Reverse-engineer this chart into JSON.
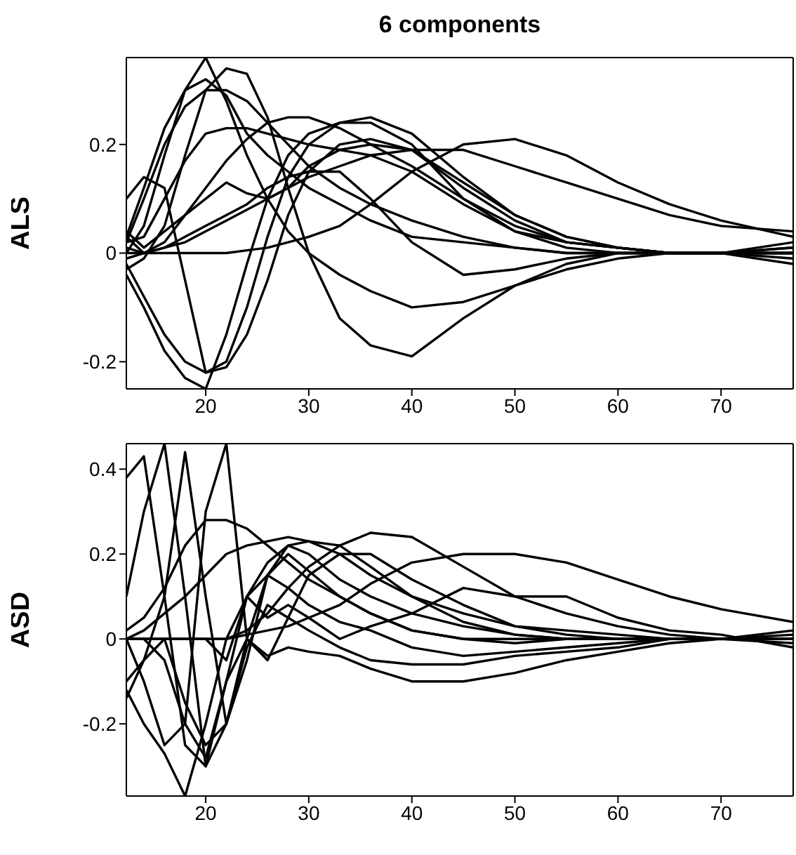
{
  "chart_data": [
    {
      "type": "line",
      "title": "6 components",
      "ylabel": "ALS",
      "xlim": [
        12.3,
        77
      ],
      "xticks": [
        20,
        30,
        40,
        50,
        60,
        70
      ],
      "ylim": [
        -0.25,
        0.36
      ],
      "yticks": [
        -0.2,
        0,
        0.2
      ],
      "x": [
        12.3,
        14,
        16,
        18,
        20,
        22,
        24,
        26,
        28,
        30,
        33,
        36,
        40,
        45,
        50,
        55,
        60,
        65,
        70,
        77
      ],
      "series": [
        {
          "color": "#000000",
          "values": [
            0,
            0.05,
            0.18,
            0.3,
            0.36,
            0.28,
            0.18,
            0.1,
            0.04,
            0,
            -0.04,
            -0.07,
            -0.1,
            -0.09,
            -0.06,
            -0.03,
            -0.01,
            0,
            0,
            0
          ]
        },
        {
          "color": "#000000",
          "values": [
            -0.03,
            -0.01,
            0.05,
            0.18,
            0.3,
            0.34,
            0.33,
            0.25,
            0.12,
            0,
            -0.12,
            -0.17,
            -0.19,
            -0.12,
            -0.06,
            -0.02,
            0,
            0,
            0,
            0
          ]
        },
        {
          "color": "#000000",
          "values": [
            -0.04,
            -0.1,
            -0.18,
            -0.23,
            -0.25,
            -0.15,
            -0.02,
            0.1,
            0.18,
            0.22,
            0.24,
            0.25,
            0.22,
            0.14,
            0.07,
            0.03,
            0.01,
            0,
            0,
            0.01
          ]
        },
        {
          "color": "#000000",
          "values": [
            -0.02,
            -0.08,
            -0.15,
            -0.2,
            -0.22,
            -0.21,
            -0.15,
            -0.05,
            0.07,
            0.15,
            0.2,
            0.21,
            0.19,
            0.12,
            0.06,
            0.02,
            0.01,
            0,
            0,
            0
          ]
        },
        {
          "color": "#000000",
          "values": [
            0,
            0,
            0,
            0,
            0,
            0,
            0.005,
            0.01,
            0.02,
            0.03,
            0.05,
            0.09,
            0.15,
            0.2,
            0.21,
            0.18,
            0.13,
            0.09,
            0.06,
            0.03
          ]
        },
        {
          "color": "#000000",
          "values": [
            0.01,
            0,
            0.02,
            0.07,
            0.12,
            0.17,
            0.21,
            0.24,
            0.25,
            0.25,
            0.23,
            0.2,
            0.16,
            0.1,
            0.05,
            0.02,
            0.01,
            0,
            0,
            0.01
          ]
        },
        {
          "color": "#000000",
          "values": [
            0.02,
            0.1,
            0.2,
            0.27,
            0.3,
            0.3,
            0.28,
            0.24,
            0.2,
            0.16,
            0.12,
            0.09,
            0.06,
            0.03,
            0.01,
            0,
            0,
            0,
            0,
            0
          ]
        },
        {
          "color": "#000000",
          "values": [
            0.03,
            0.12,
            0.23,
            0.3,
            0.32,
            0.29,
            0.22,
            0.18,
            0.15,
            0.12,
            0.09,
            0.06,
            0.03,
            0.02,
            0.01,
            0,
            0,
            0,
            0,
            0
          ]
        },
        {
          "color": "#000000",
          "values": [
            -0.01,
            0,
            0.01,
            0.02,
            0.04,
            0.06,
            0.08,
            0.1,
            0.12,
            0.14,
            0.16,
            0.18,
            0.19,
            0.19,
            0.16,
            0.13,
            0.1,
            0.07,
            0.05,
            0.04
          ]
        },
        {
          "color": "#000000",
          "values": [
            0.1,
            0.14,
            0.12,
            -0.05,
            -0.22,
            -0.2,
            -0.1,
            0.03,
            0.14,
            0.2,
            0.24,
            0.24,
            0.2,
            0.1,
            0.04,
            0.01,
            0,
            0,
            0,
            0
          ]
        },
        {
          "color": "#000000",
          "values": [
            0.02,
            0.03,
            0.1,
            0.17,
            0.22,
            0.23,
            0.23,
            0.22,
            0.21,
            0.2,
            0.19,
            0.18,
            0.15,
            0.09,
            0.04,
            0.02,
            0.01,
            0,
            0,
            0.02
          ]
        },
        {
          "color": "#000000",
          "values": [
            0.04,
            0.01,
            0.04,
            0.07,
            0.1,
            0.13,
            0.11,
            0.1,
            0.12,
            0.16,
            0.19,
            0.2,
            0.19,
            0.13,
            0.07,
            0.03,
            0.01,
            0,
            0,
            -0.01
          ]
        },
        {
          "color": "#000000",
          "values": [
            0.03,
            0,
            0.01,
            0.03,
            0.05,
            0.07,
            0.09,
            0.12,
            0.14,
            0.15,
            0.15,
            0.1,
            0.02,
            -0.04,
            -0.03,
            -0.01,
            0,
            0,
            0,
            -0.02
          ]
        }
      ]
    },
    {
      "type": "line",
      "ylabel": "ASD",
      "xlim": [
        12.3,
        77
      ],
      "xticks": [
        20,
        30,
        40,
        50,
        60,
        70
      ],
      "ylim": [
        -0.37,
        0.46
      ],
      "yticks": [
        -0.2,
        0,
        0.2,
        0.4
      ],
      "x": [
        12.3,
        14,
        16,
        18,
        20,
        22,
        24,
        26,
        28,
        30,
        33,
        36,
        40,
        45,
        50,
        55,
        60,
        65,
        70,
        77
      ],
      "series": [
        {
          "color": "#000000",
          "values": [
            0.38,
            0.43,
            0.1,
            -0.25,
            -0.3,
            -0.1,
            0.1,
            0.15,
            0.12,
            0.08,
            0.04,
            0.02,
            -0.02,
            -0.04,
            -0.03,
            -0.02,
            -0.01,
            0,
            0,
            0
          ]
        },
        {
          "color": "#000000",
          "values": [
            0.1,
            0.3,
            0.46,
            0.1,
            -0.3,
            -0.2,
            0,
            0.15,
            0.2,
            0.16,
            0.1,
            0.06,
            0.02,
            0,
            -0.01,
            0,
            0,
            0,
            0,
            0
          ]
        },
        {
          "color": "#000000",
          "values": [
            -0.1,
            -0.05,
            0.1,
            0.44,
            0.1,
            -0.2,
            -0.05,
            0.15,
            0.22,
            0.2,
            0.14,
            0.1,
            0.06,
            0.03,
            0.01,
            0,
            0,
            0,
            0,
            0
          ]
        },
        {
          "color": "#000000",
          "values": [
            0,
            -0.1,
            -0.25,
            -0.2,
            0.3,
            0.46,
            0,
            -0.05,
            0.05,
            0.15,
            0.2,
            0.2,
            0.14,
            0.08,
            0.03,
            0.01,
            0,
            0,
            0,
            0.01
          ]
        },
        {
          "color": "#000000",
          "values": [
            -0.12,
            -0.2,
            -0.27,
            -0.37,
            -0.2,
            0,
            0.1,
            0.18,
            0.22,
            0.23,
            0.22,
            0.17,
            0.1,
            0.04,
            0.01,
            0,
            0,
            0,
            0,
            0
          ]
        },
        {
          "color": "#000000",
          "values": [
            0.02,
            0.05,
            0.12,
            0.22,
            0.28,
            0.28,
            0.26,
            0.22,
            0.18,
            0.14,
            0.1,
            0.06,
            0.02,
            0,
            0,
            0,
            0,
            0,
            0,
            0
          ]
        },
        {
          "color": "#000000",
          "values": [
            0,
            0,
            0,
            0,
            0,
            0,
            0.01,
            0.02,
            0.03,
            0.05,
            0.08,
            0.13,
            0.18,
            0.2,
            0.2,
            0.18,
            0.14,
            0.1,
            0.07,
            0.04
          ]
        },
        {
          "color": "#000000",
          "values": [
            0,
            0,
            0,
            0,
            0,
            0,
            0.02,
            0.06,
            0.12,
            0.17,
            0.22,
            0.25,
            0.24,
            0.17,
            0.1,
            0.06,
            0.03,
            0.01,
            0,
            0.02
          ]
        },
        {
          "color": "#000000",
          "values": [
            0,
            0,
            -0.05,
            -0.2,
            -0.28,
            -0.1,
            0,
            -0.04,
            -0.02,
            -0.03,
            -0.04,
            -0.07,
            -0.1,
            -0.1,
            -0.08,
            -0.05,
            -0.03,
            -0.01,
            0,
            -0.01
          ]
        },
        {
          "color": "#000000",
          "values": [
            0,
            0,
            0,
            0,
            0,
            -0.05,
            0.1,
            0.05,
            0.08,
            0.05,
            0,
            0.03,
            0.06,
            0.12,
            0.1,
            0.1,
            0.05,
            0.02,
            0.01,
            -0.02
          ]
        },
        {
          "color": "#000000",
          "values": [
            0,
            0.02,
            0.06,
            0.1,
            0.15,
            0.2,
            0.22,
            0.23,
            0.24,
            0.23,
            0.2,
            0.15,
            0.1,
            0.06,
            0.03,
            0.02,
            0.01,
            0,
            0,
            0
          ]
        },
        {
          "color": "#000000",
          "values": [
            -0.14,
            -0.05,
            0,
            -0.15,
            -0.25,
            -0.2,
            -0.02,
            0.08,
            0.05,
            0.02,
            -0.02,
            -0.05,
            -0.06,
            -0.06,
            -0.04,
            -0.03,
            -0.02,
            0,
            0,
            0
          ]
        }
      ]
    }
  ]
}
